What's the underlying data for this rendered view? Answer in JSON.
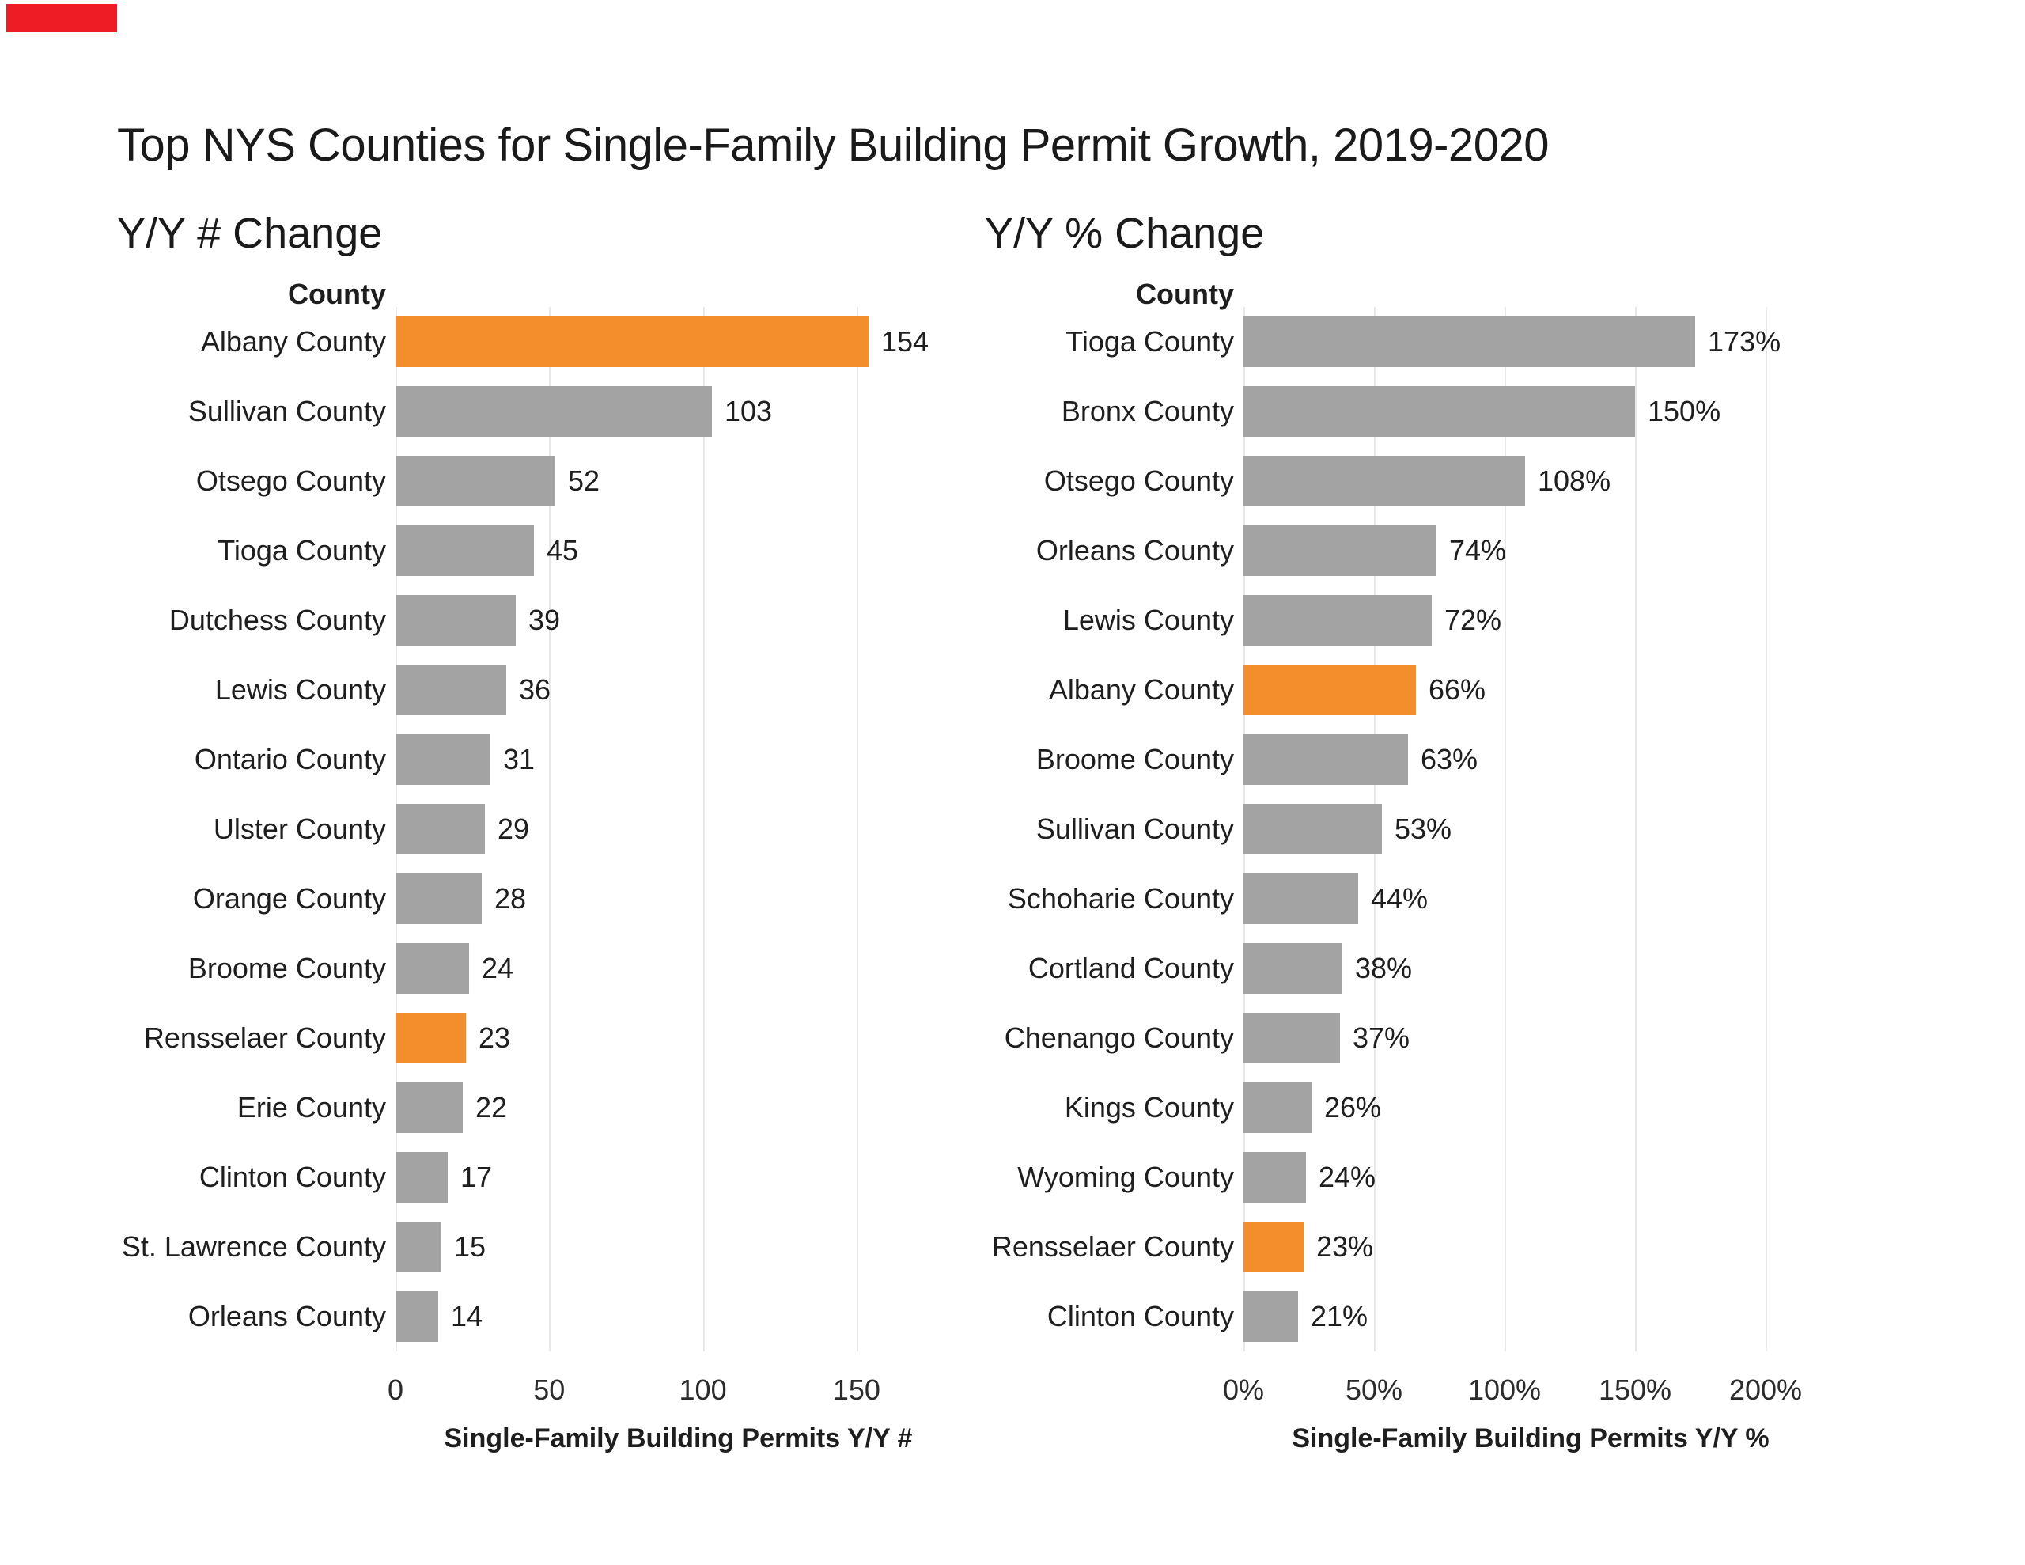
{
  "page": {
    "title": "Top NYS Counties for Single-Family Building Permit Growth, 2019-2020"
  },
  "colors": {
    "bar_default": "#a3a3a3",
    "bar_highlight": "#f28e2b",
    "gridline": "#e8e8e8",
    "text": "#1e1e1e",
    "corner_marker_red": "#ee1c24"
  },
  "chart_data": [
    {
      "type": "bar",
      "orientation": "horizontal",
      "title": "Y/Y # Change",
      "column_header": "County",
      "xlabel": "Single-Family Building Permits Y/Y #",
      "grid": true,
      "legend": "none",
      "value_suffix": "",
      "xlim": [
        0,
        184
      ],
      "xticks": [
        {
          "label": "0",
          "value": 0
        },
        {
          "label": "50",
          "value": 50
        },
        {
          "label": "100",
          "value": 100
        },
        {
          "label": "150",
          "value": 150
        }
      ],
      "categories": [
        "Albany County",
        "Sullivan County",
        "Otsego County",
        "Tioga County",
        "Dutchess County",
        "Lewis County",
        "Ontario County",
        "Ulster County",
        "Orange County",
        "Broome County",
        "Rensselaer County",
        "Erie County",
        "Clinton County",
        "St. Lawrence County",
        "Orleans County"
      ],
      "values": [
        154,
        103,
        52,
        45,
        39,
        36,
        31,
        29,
        28,
        24,
        23,
        22,
        17,
        15,
        14
      ],
      "value_labels": [
        "154",
        "103",
        "52",
        "45",
        "39",
        "36",
        "31",
        "29",
        "28",
        "24",
        "23",
        "22",
        "17",
        "15",
        "14"
      ],
      "highlighted_categories": [
        "Albany County",
        "Rensselaer County"
      ]
    },
    {
      "type": "bar",
      "orientation": "horizontal",
      "title": "Y/Y % Change",
      "column_header": "County",
      "xlabel": "Single-Family Building Permits Y/Y %",
      "grid": true,
      "legend": "none",
      "value_suffix": "%",
      "xlim": [
        0,
        220
      ],
      "xticks": [
        {
          "label": "0%",
          "value": 0
        },
        {
          "label": "50%",
          "value": 50
        },
        {
          "label": "100%",
          "value": 100
        },
        {
          "label": "150%",
          "value": 150
        },
        {
          "label": "200%",
          "value": 200
        }
      ],
      "categories": [
        "Tioga County",
        "Bronx County",
        "Otsego County",
        "Orleans County",
        "Lewis County",
        "Albany County",
        "Broome County",
        "Sullivan County",
        "Schoharie County",
        "Cortland County",
        "Chenango County",
        "Kings County",
        "Wyoming County",
        "Rensselaer County",
        "Clinton County"
      ],
      "values": [
        173,
        150,
        108,
        74,
        72,
        66,
        63,
        53,
        44,
        38,
        37,
        26,
        24,
        23,
        21
      ],
      "value_labels": [
        "173%",
        "150%",
        "108%",
        "74%",
        "72%",
        "66%",
        "63%",
        "53%",
        "44%",
        "38%",
        "37%",
        "26%",
        "24%",
        "23%",
        "21%"
      ],
      "highlighted_categories": [
        "Albany County",
        "Rensselaer County"
      ]
    }
  ]
}
